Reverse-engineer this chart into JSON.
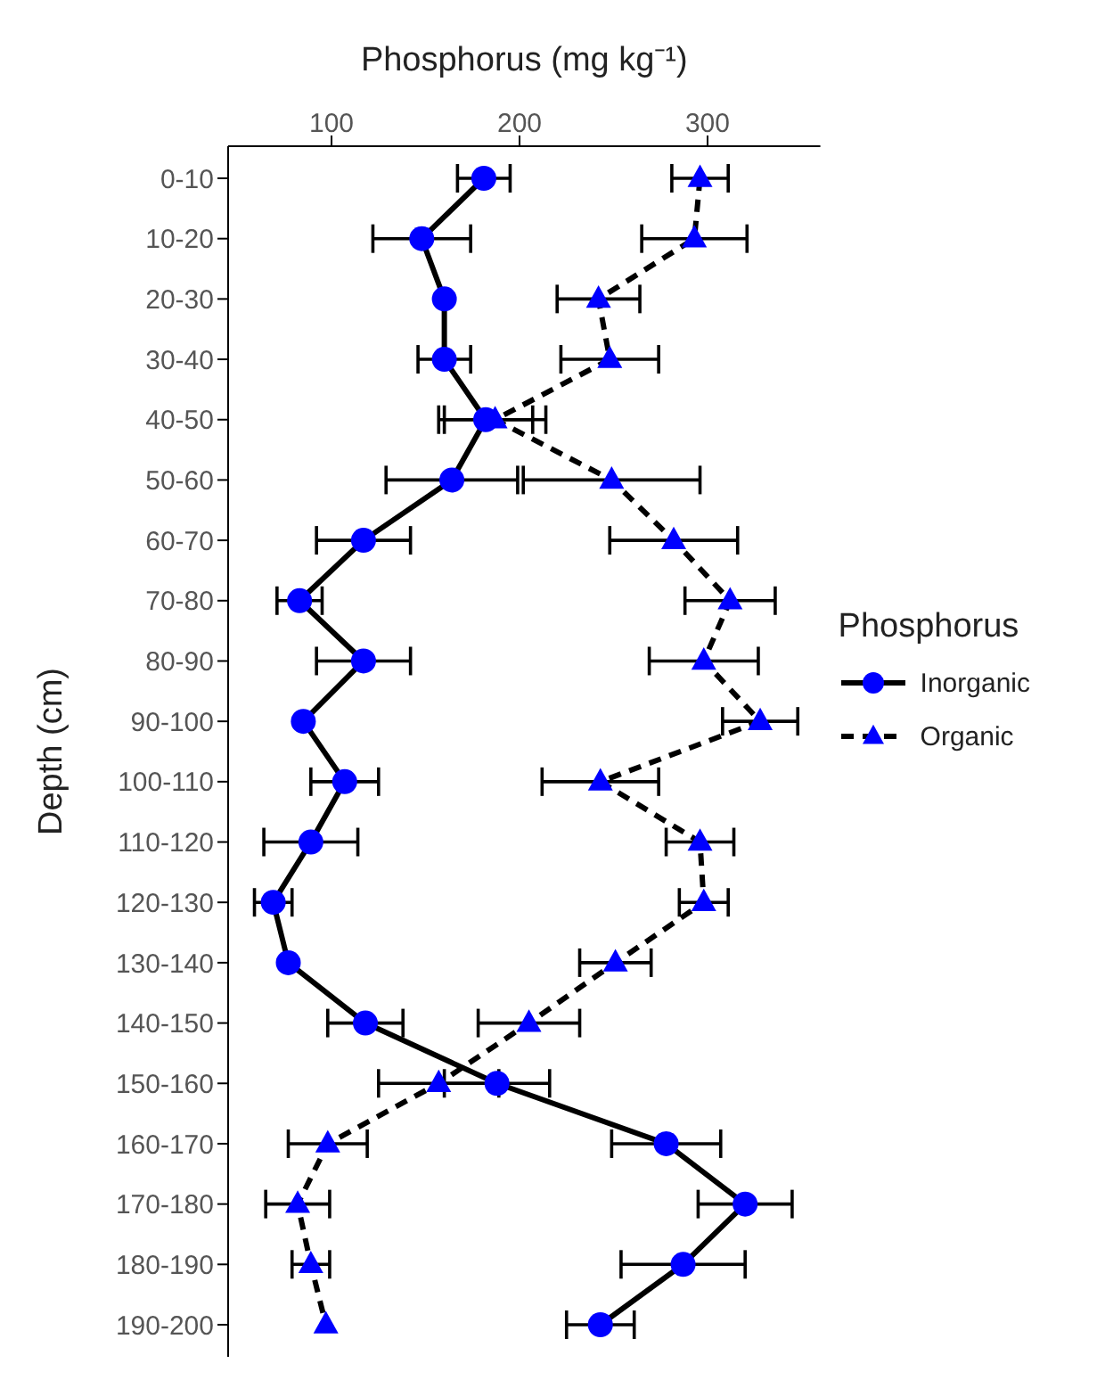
{
  "chart_data": {
    "type": "line",
    "orientation": "horizontal",
    "xlabel": "Phosphorus (mg kg⁻¹)",
    "ylabel": "Depth (cm)",
    "legend_title": "Phosphorus",
    "legend": "right",
    "categories": [
      "0-10",
      "10-20",
      "20-30",
      "30-40",
      "40-50",
      "50-60",
      "60-70",
      "70-80",
      "80-90",
      "90-100",
      "100-110",
      "110-120",
      "120-130",
      "130-140",
      "140-150",
      "150-160",
      "160-170",
      "170-180",
      "180-190",
      "190-200"
    ],
    "xlim": [
      45,
      360
    ],
    "xticks": [
      100,
      200,
      300
    ],
    "series": [
      {
        "name": "Inorganic",
        "color": "#0000ff",
        "marker": "circle",
        "line_style": "solid",
        "values": [
          181,
          148,
          160,
          160,
          182,
          164,
          117,
          83,
          117,
          85,
          107,
          89,
          69,
          77,
          118,
          188,
          278,
          320,
          287,
          243
        ],
        "errors": [
          14,
          26,
          null,
          14,
          25,
          35,
          25,
          12,
          25,
          null,
          18,
          25,
          10,
          null,
          20,
          28,
          29,
          25,
          33,
          18
        ]
      },
      {
        "name": "Organic",
        "color": "#0000ff",
        "marker": "triangle",
        "line_style": "dashed",
        "values": [
          296,
          293,
          242,
          248,
          187,
          249,
          282,
          312,
          298,
          328,
          243,
          296,
          298,
          251,
          205,
          157,
          98,
          82,
          89,
          97
        ],
        "errors": [
          15,
          28,
          22,
          26,
          27,
          47,
          34,
          24,
          29,
          20,
          31,
          18,
          13,
          19,
          27,
          32,
          21,
          17,
          10,
          null
        ]
      }
    ]
  }
}
